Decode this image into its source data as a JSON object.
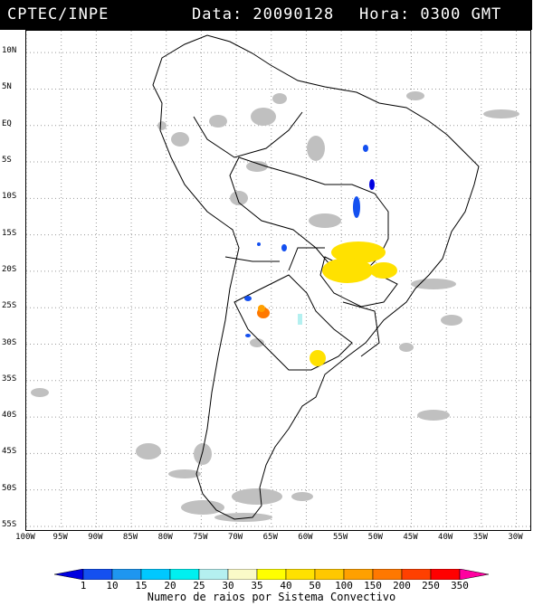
{
  "header": {
    "source": "CPTEC/INPE",
    "date_text": "Data: 20090128",
    "hour_text": "Hora: 0300 GMT"
  },
  "map": {
    "lat_labels": [
      "10N",
      "5N",
      "EQ",
      "5S",
      "10S",
      "15S",
      "20S",
      "25S",
      "30S",
      "35S",
      "40S",
      "45S",
      "50S",
      "55S"
    ],
    "lon_labels": [
      "100W",
      "95W",
      "90W",
      "85W",
      "80W",
      "75W",
      "70W",
      "65W",
      "60W",
      "55W",
      "50W",
      "45W",
      "40W",
      "35W",
      "30W"
    ],
    "lat_values": [
      10,
      5,
      0,
      -5,
      -10,
      -15,
      -20,
      -25,
      -30,
      -35,
      -40,
      -45,
      -50,
      -55
    ],
    "lon_values": [
      -100,
      -95,
      -90,
      -85,
      -80,
      -75,
      -70,
      -65,
      -60,
      -55,
      -50,
      -45,
      -40,
      -35,
      -30
    ],
    "gridlines": true,
    "cloud_color": "#c0c0c0",
    "coast_color": "#000000"
  },
  "legend": {
    "values": [
      "1",
      "10",
      "15",
      "20",
      "25",
      "30",
      "35",
      "40",
      "50",
      "100",
      "150",
      "200",
      "250",
      "350"
    ],
    "colors": [
      "#0000e0",
      "#1450f0",
      "#1e96f0",
      "#00c8ff",
      "#00f0f0",
      "#b4f0f0",
      "#fafac8",
      "#ffff00",
      "#ffe100",
      "#ffc800",
      "#ffa000",
      "#ff7800",
      "#ff4000",
      "#ff0000",
      "#ff00a0"
    ],
    "caption": "Numero de raios por Sistema Convectivo"
  }
}
